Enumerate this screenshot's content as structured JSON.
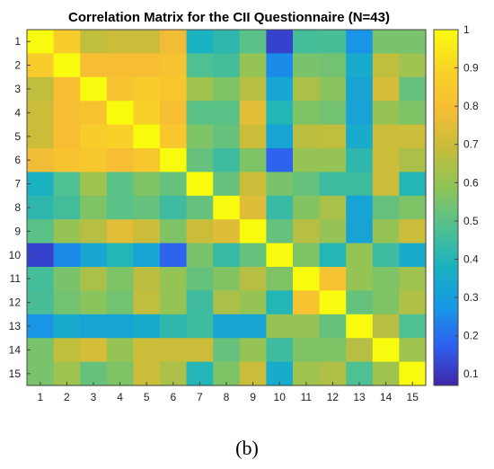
{
  "chart_data": {
    "type": "heatmap",
    "title": "Correlation Matrix for the CII Questionnaire (N=43)",
    "row_labels": [
      "1",
      "2",
      "3",
      "4",
      "5",
      "6",
      "7",
      "8",
      "9",
      "10",
      "11",
      "12",
      "13",
      "14",
      "15"
    ],
    "col_labels": [
      "1",
      "2",
      "3",
      "4",
      "5",
      "6",
      "7",
      "8",
      "9",
      "10",
      "11",
      "12",
      "13",
      "14",
      "15"
    ],
    "values": [
      [
        1.0,
        0.86,
        0.68,
        0.7,
        0.7,
        0.78,
        0.38,
        0.42,
        0.5,
        0.12,
        0.46,
        0.47,
        0.27,
        0.55,
        0.55
      ],
      [
        0.86,
        1.0,
        0.8,
        0.8,
        0.8,
        0.82,
        0.48,
        0.46,
        0.6,
        0.25,
        0.55,
        0.54,
        0.35,
        0.68,
        0.62
      ],
      [
        0.68,
        0.8,
        1.0,
        0.82,
        0.86,
        0.84,
        0.62,
        0.56,
        0.66,
        0.33,
        0.64,
        0.58,
        0.32,
        0.72,
        0.52
      ],
      [
        0.7,
        0.8,
        0.82,
        1.0,
        0.88,
        0.8,
        0.5,
        0.5,
        0.75,
        0.4,
        0.56,
        0.54,
        0.32,
        0.6,
        0.56
      ],
      [
        0.7,
        0.8,
        0.86,
        0.88,
        1.0,
        0.84,
        0.56,
        0.52,
        0.7,
        0.32,
        0.67,
        0.68,
        0.35,
        0.7,
        0.7
      ],
      [
        0.78,
        0.82,
        0.84,
        0.8,
        0.84,
        1.0,
        0.52,
        0.45,
        0.56,
        0.18,
        0.6,
        0.6,
        0.42,
        0.7,
        0.64
      ],
      [
        0.38,
        0.48,
        0.62,
        0.5,
        0.56,
        0.52,
        1.0,
        0.52,
        0.7,
        0.55,
        0.52,
        0.45,
        0.45,
        0.7,
        0.4
      ],
      [
        0.42,
        0.46,
        0.56,
        0.5,
        0.52,
        0.45,
        0.52,
        1.0,
        0.74,
        0.44,
        0.57,
        0.64,
        0.32,
        0.52,
        0.56
      ],
      [
        0.5,
        0.6,
        0.66,
        0.75,
        0.7,
        0.56,
        0.7,
        0.74,
        1.0,
        0.52,
        0.66,
        0.6,
        0.32,
        0.6,
        0.7
      ],
      [
        0.12,
        0.25,
        0.33,
        0.4,
        0.32,
        0.18,
        0.55,
        0.44,
        0.52,
        1.0,
        0.56,
        0.4,
        0.6,
        0.45,
        0.35
      ],
      [
        0.46,
        0.55,
        0.64,
        0.56,
        0.67,
        0.6,
        0.52,
        0.57,
        0.66,
        0.56,
        1.0,
        0.82,
        0.6,
        0.56,
        0.62
      ],
      [
        0.47,
        0.54,
        0.58,
        0.54,
        0.68,
        0.6,
        0.45,
        0.64,
        0.6,
        0.4,
        0.82,
        1.0,
        0.52,
        0.56,
        0.65
      ],
      [
        0.27,
        0.35,
        0.32,
        0.32,
        0.35,
        0.42,
        0.45,
        0.32,
        0.32,
        0.6,
        0.6,
        0.52,
        1.0,
        0.66,
        0.48
      ],
      [
        0.55,
        0.68,
        0.72,
        0.6,
        0.7,
        0.7,
        0.7,
        0.52,
        0.6,
        0.45,
        0.56,
        0.56,
        0.66,
        1.0,
        0.62
      ],
      [
        0.55,
        0.62,
        0.52,
        0.56,
        0.7,
        0.64,
        0.4,
        0.56,
        0.7,
        0.35,
        0.62,
        0.65,
        0.48,
        0.62,
        1.0
      ]
    ],
    "colorbar": {
      "min": 0.07,
      "max": 1.0,
      "ticks": [
        0.1,
        0.2,
        0.3,
        0.4,
        0.5,
        0.6,
        0.7,
        0.8,
        0.9,
        1
      ],
      "tick_labels": [
        "0.1",
        "0.2",
        "0.3",
        "0.4",
        "0.5",
        "0.6",
        "0.7",
        "0.8",
        "0.9",
        "1"
      ],
      "colormap": "parula",
      "colormap_stops": [
        "#3e26a8",
        "#2e5ff0",
        "#1699e5",
        "#1ab2c0",
        "#50c090",
        "#8ec458",
        "#c6bd3a",
        "#f7bd35",
        "#f9d426",
        "#f9fb0e"
      ]
    },
    "grid": false
  },
  "caption": "(b)"
}
